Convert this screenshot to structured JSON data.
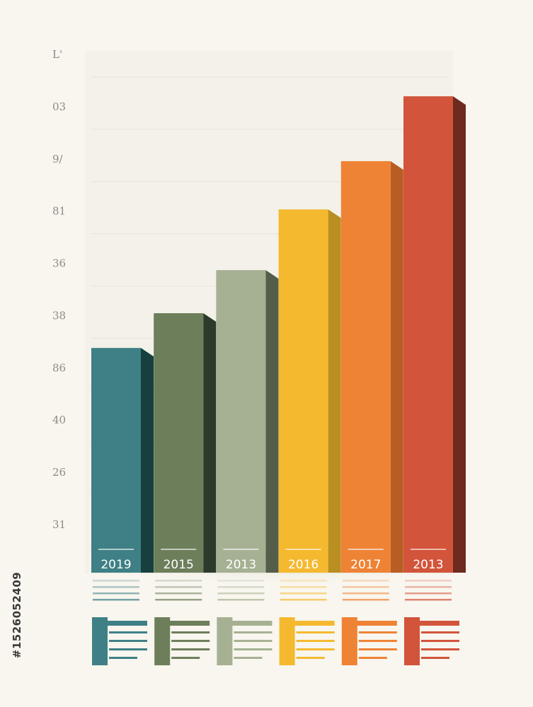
{
  "chart_data": {
    "type": "bar",
    "title": "",
    "xlabel": "",
    "ylabel": "",
    "y_tick_labels": [
      "L'",
      "03",
      "9/",
      "81",
      "36",
      "38",
      "86",
      "40",
      "26",
      "31"
    ],
    "categories": [
      "2019",
      "2015",
      "2013",
      "2016",
      "2017",
      "2013"
    ],
    "values": [
      4.33,
      5.0,
      5.83,
      7.0,
      7.93,
      9.18
    ],
    "ylim": [
      0,
      10
    ],
    "grid": true,
    "legend": "bottom",
    "colors": [
      "#3e8085",
      "#6d7e5b",
      "#a6b193",
      "#f5b930",
      "#ee8335",
      "#d2543a"
    ],
    "side_colors": [
      "#173f3e",
      "#2c3a2b",
      "#545d4a",
      "#b98f22",
      "#b85e22",
      "#6d2a1f"
    ]
  },
  "watermark": {
    "stock_id": "#1526052409"
  }
}
